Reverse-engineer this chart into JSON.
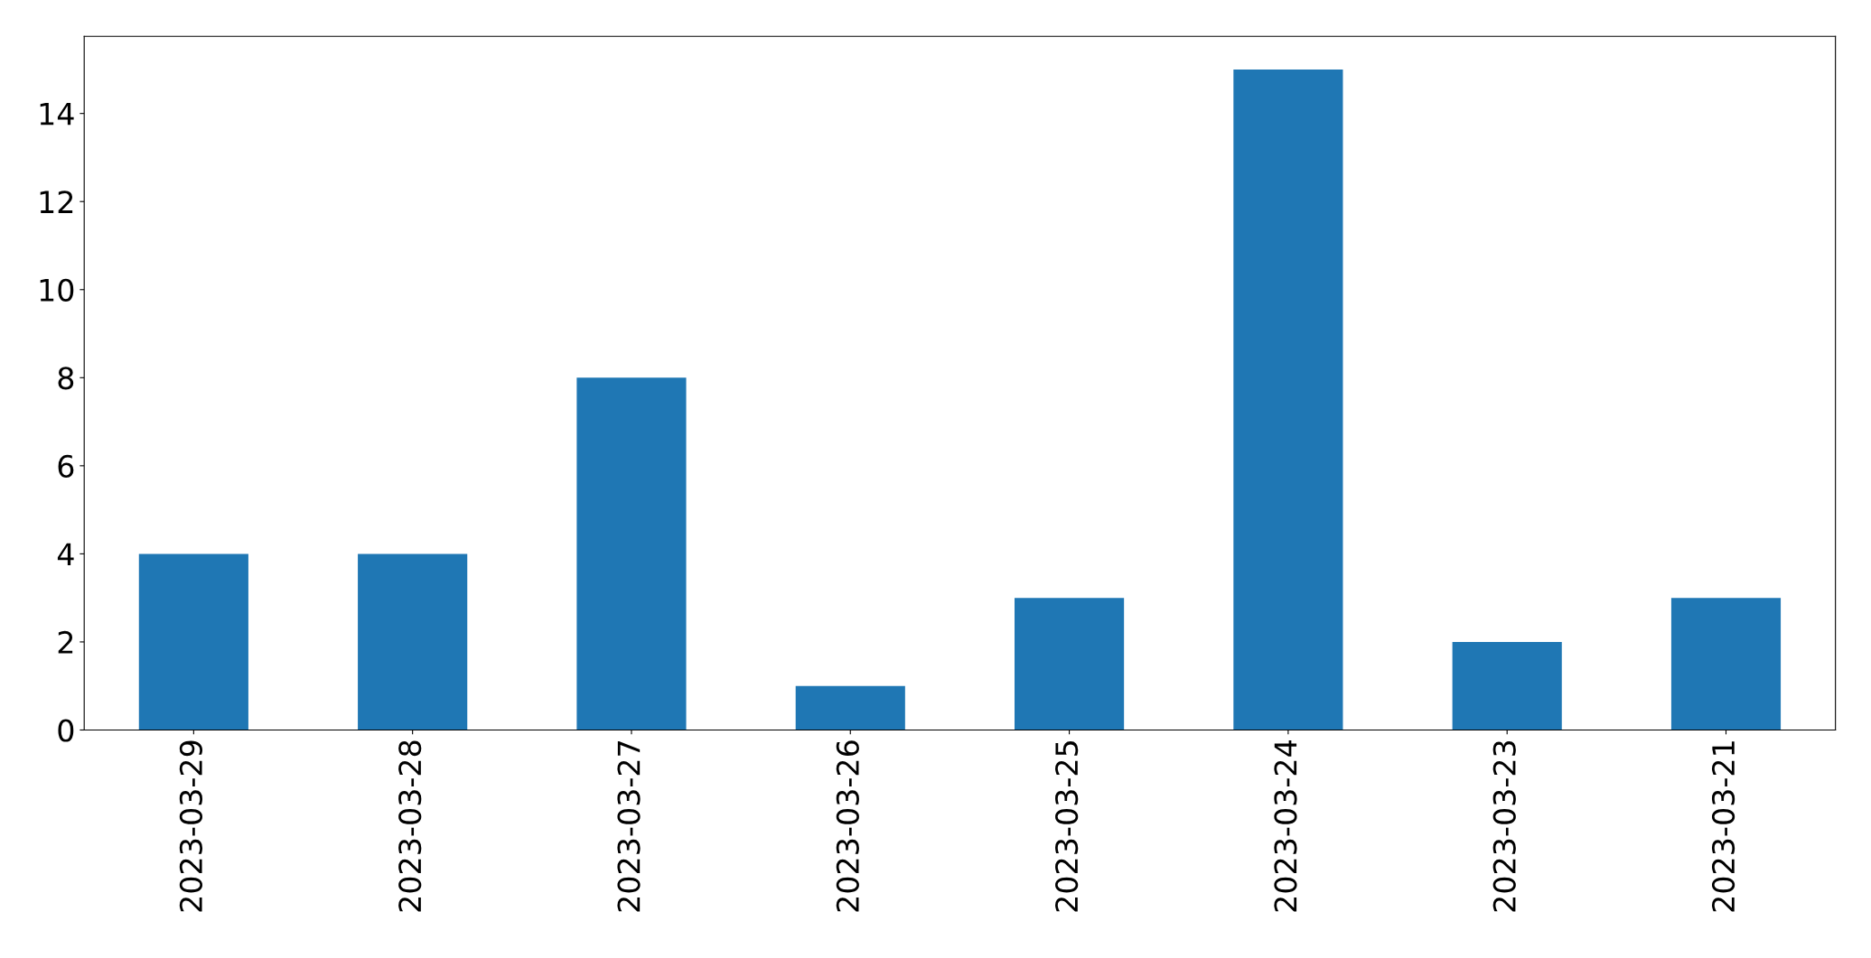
{
  "chart_data": {
    "type": "bar",
    "categories": [
      "2023-03-29",
      "2023-03-28",
      "2023-03-27",
      "2023-03-26",
      "2023-03-25",
      "2023-03-24",
      "2023-03-23",
      "2023-03-21"
    ],
    "values": [
      4,
      4,
      8,
      1,
      3,
      15,
      2,
      3
    ],
    "color": "#1f77b4",
    "ylim": [
      0,
      15.75
    ],
    "yticks": [
      0,
      2,
      4,
      6,
      8,
      10,
      12,
      14
    ],
    "grid": false,
    "legend": false
  }
}
